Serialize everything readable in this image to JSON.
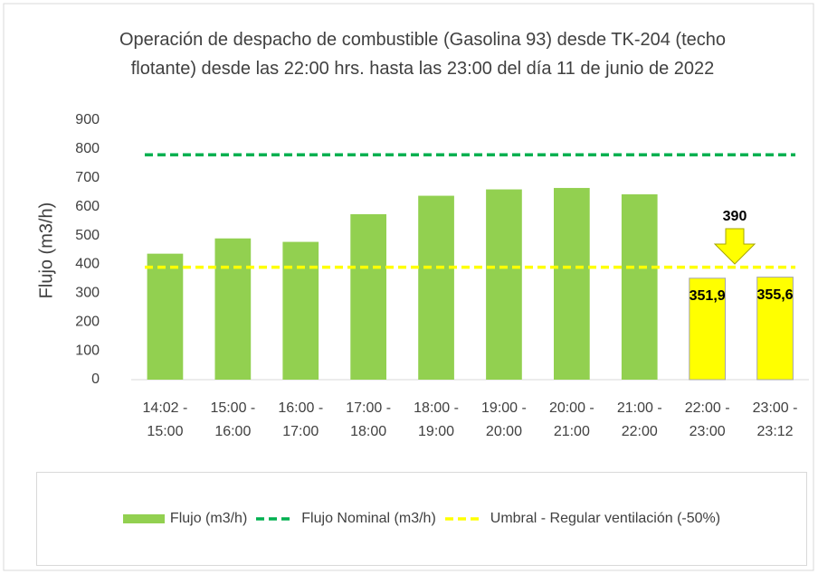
{
  "chart_data": {
    "type": "bar",
    "title": "Operación de despacho de combustible (Gasolina 93) desde TK-204 (techo flotante) desde las 22:00 hrs. hasta las 23:00 del día 11 de junio de 2022",
    "y_label": "Flujo (m3/h)",
    "categories": [
      "14:02 - 15:00",
      "15:00 - 16:00",
      "16:00 - 17:00",
      "17:00 - 18:00",
      "18:00 - 19:00",
      "19:00 - 20:00",
      "20:00 - 21:00",
      "21:00 - 22:00",
      "22:00 - 23:00",
      "23:00 - 23:12"
    ],
    "series": [
      {
        "name": "Flujo (m3/h)",
        "type": "bar",
        "color": "#92d050",
        "colors": [
          "#92d050",
          "#92d050",
          "#92d050",
          "#92d050",
          "#92d050",
          "#92d050",
          "#92d050",
          "#92d050",
          "#ffff00",
          "#ffff00"
        ],
        "values": [
          437,
          490,
          478,
          574,
          638,
          660,
          665,
          643,
          351.9,
          355.6
        ],
        "value_labels": [
          null,
          null,
          null,
          null,
          null,
          null,
          null,
          null,
          "351,9",
          "355,6"
        ]
      },
      {
        "name": "Flujo Nominal (m3/h)",
        "type": "line",
        "dashed": true,
        "color": "#00b050",
        "values": [
          780,
          780,
          780,
          780,
          780,
          780,
          780,
          780,
          780,
          780
        ]
      },
      {
        "name": "Umbral - Regular ventilación (-50%)",
        "type": "line",
        "dashed": true,
        "color": "#ffff00",
        "values": [
          390,
          390,
          390,
          390,
          390,
          390,
          390,
          390,
          390,
          390
        ]
      }
    ],
    "annotation": "390",
    "ylim": [
      0,
      900
    ],
    "yticks": [
      0,
      100,
      200,
      300,
      400,
      500,
      600,
      700,
      800,
      900
    ],
    "grid": false,
    "legend": "bottom"
  }
}
